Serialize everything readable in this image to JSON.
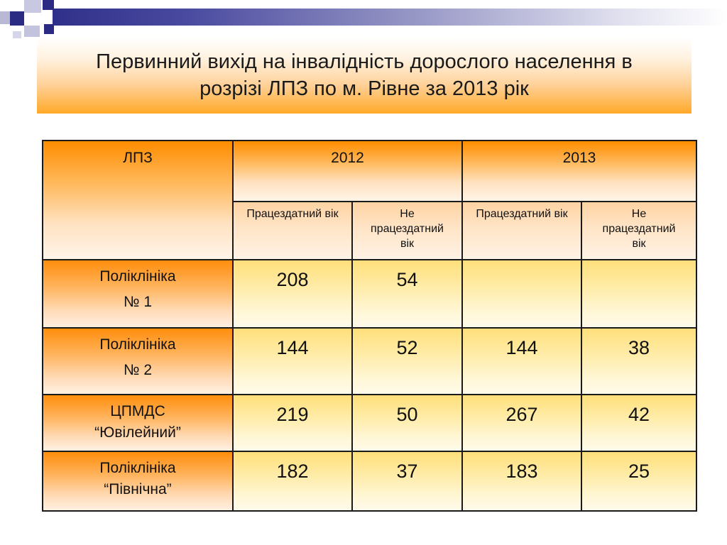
{
  "title": {
    "line1": "Первинний вихід на інвалідність дорослого населення в",
    "line2": "розрізі ЛПЗ по м. Рівне за 2013 рік"
  },
  "table": {
    "header": {
      "lpz": "ЛПЗ",
      "year_2012": "2012",
      "year_2013": "2013",
      "sub_2012_working": "Працездатний вік",
      "sub_2012_nonworking_1": "Не",
      "sub_2012_nonworking_2": "працездатний",
      "sub_2012_nonworking_3": "вік",
      "sub_2013_working": "Працездатний вік",
      "sub_2013_nonworking_1": "Не",
      "sub_2013_nonworking_2": "працездатний",
      "sub_2013_nonworking_3": "вік"
    },
    "rows": [
      {
        "name_line1": "Поліклініка",
        "name_line2": "№ 1",
        "v2012_working": "208",
        "v2012_nonworking": "54",
        "v2013_working": "",
        "v2013_nonworking": ""
      },
      {
        "name_line1": "Поліклініка",
        "name_line2": "№ 2",
        "v2012_working": "144",
        "v2012_nonworking": "52",
        "v2013_working": "144",
        "v2013_nonworking": "38"
      },
      {
        "name_line1": "ЦПМДС",
        "name_line2": "“Ювілейний”",
        "v2012_working": "219",
        "v2012_nonworking": "50",
        "v2013_working": "267",
        "v2013_nonworking": "42"
      },
      {
        "name_line1": "Поліклініка",
        "name_line2": "“Північна”",
        "v2012_working": "182",
        "v2012_nonworking": "37",
        "v2013_working": "183",
        "v2013_nonworking": "25"
      }
    ]
  }
}
